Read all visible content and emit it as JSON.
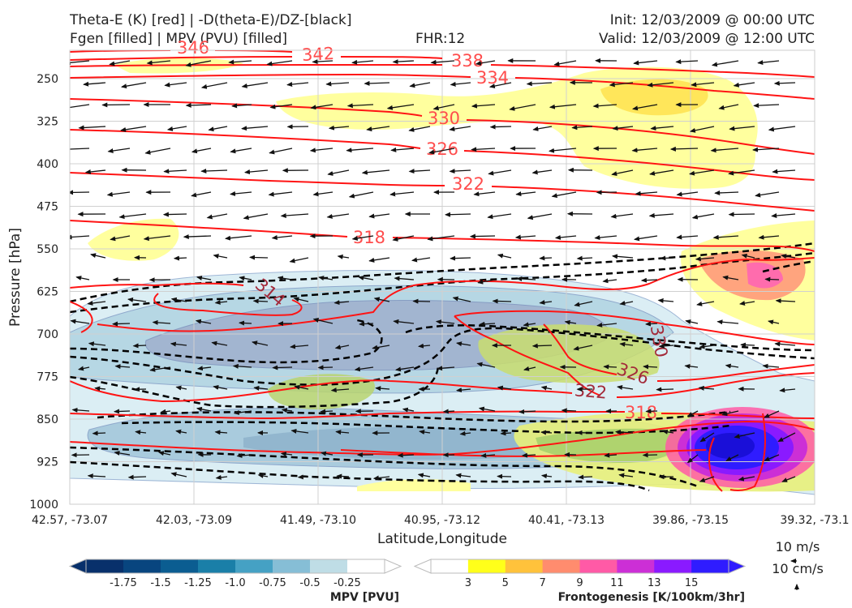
{
  "header": {
    "title_line1": "Theta-E (K) [red] | -D(theta-E)/DZ-[black]",
    "title_line2": "Fgen [filled] | MPV (PVU) [filled]",
    "fhr": "FHR:12",
    "init": "Init: 12/03/2009 @ 00:00 UTC",
    "valid": "Valid: 12/03/2009 @ 12:00 UTC"
  },
  "chart_data": {
    "type": "cross-section",
    "xlabel": "Latitude,Longitude",
    "ylabel": "Pressure [hPa]",
    "x_ticks": [
      "42.57, -73.07",
      "42.03, -73.09",
      "41.49, -73.10",
      "40.95, -73.12",
      "40.41, -73.13",
      "39.86, -73.15",
      "39.32, -73.1"
    ],
    "y_ticks": [
      250,
      325,
      400,
      475,
      550,
      625,
      700,
      775,
      850,
      925,
      1000
    ],
    "ylim": [
      1000,
      200
    ],
    "y_reversed": true,
    "grid": true,
    "theta_e_contours": [
      {
        "value": 346,
        "label": "346"
      },
      {
        "value": 342,
        "label": "342"
      },
      {
        "value": 338,
        "label": "338"
      },
      {
        "value": 334,
        "label": "334"
      },
      {
        "value": 330,
        "label": "330"
      },
      {
        "value": 326,
        "label": "326"
      },
      {
        "value": 322,
        "label": "322"
      },
      {
        "value": 318,
        "label": "318"
      },
      {
        "value": 314,
        "label": "314"
      },
      {
        "value": 330,
        "label": "330"
      },
      {
        "value": 326,
        "label": "326"
      },
      {
        "value": 322,
        "label": "322"
      },
      {
        "value": 318,
        "label": "318"
      }
    ],
    "wind_scale": {
      "u_label": "10 m/s",
      "w_label": "10 cm/s"
    }
  },
  "colorbars": {
    "mpv": {
      "title": "MPV [PVU]",
      "ticks": [
        "-1.75",
        "-1.5",
        "-1.25",
        "-1.0",
        "-0.75",
        "-0.5",
        "-0.25"
      ],
      "colors": [
        "#08306b",
        "#08457f",
        "#0b5d91",
        "#1a7fa8",
        "#45a1c4",
        "#86bed6",
        "#bfdde6",
        "#ffffff"
      ]
    },
    "fgen": {
      "title": "Frontogenesis [K/100km/3hr]",
      "ticks": [
        "3",
        "5",
        "7",
        "9",
        "11",
        "13",
        "15"
      ],
      "colors": [
        "#ffffff",
        "#ffff1a",
        "#ffc23b",
        "#ff8c6e",
        "#ff5aa6",
        "#cc2fd6",
        "#8a1aff",
        "#2f1cff"
      ]
    }
  },
  "colors": {
    "theta_e": "#ff1414",
    "theta_e_label": "#ff4d4d",
    "theta_e_label_dark": "#a32a3a",
    "stability": "#000000",
    "mpv_fill": "#a7cfdd",
    "fgen_fill": "#ffff8c"
  }
}
